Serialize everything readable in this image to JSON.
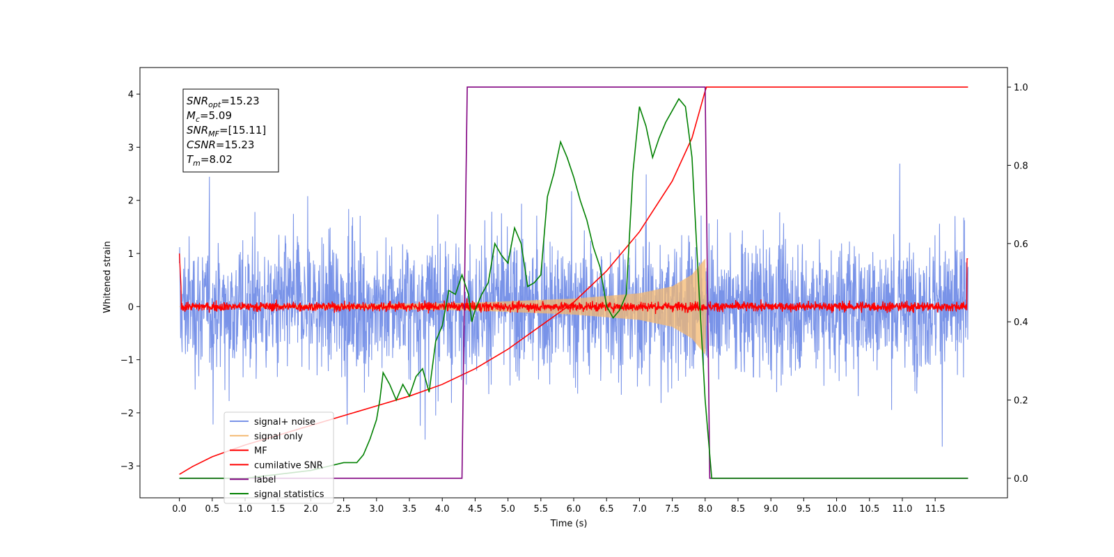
{
  "chart_data": {
    "type": "line",
    "xlabel": "Time (s)",
    "ylabel_left": "Whitened strain",
    "ylabel_right": "",
    "xlim": [
      -0.6,
      12.6
    ],
    "ylim_left": [
      -3.6,
      4.5
    ],
    "ylim_right": [
      -0.05,
      1.05
    ],
    "x_ticks": [
      0.0,
      0.5,
      1.0,
      1.5,
      2.0,
      2.5,
      3.0,
      3.5,
      4.0,
      4.5,
      5.0,
      5.5,
      6.0,
      6.5,
      7.0,
      7.5,
      8.0,
      8.5,
      9.0,
      9.5,
      10.0,
      10.5,
      11.0,
      11.5
    ],
    "x_tick_labels": [
      "0.0",
      "0.5",
      "1.0",
      "1.5",
      "2.0",
      "2.5",
      "3.0",
      "3.5",
      "4.0",
      "4.5",
      "5.0",
      "5.5",
      "6.0",
      "6.5",
      "7.0",
      "7.5",
      "8.0",
      "8.5",
      "9.0",
      "9.5",
      "10.0",
      "10.5",
      "11.0",
      "11.5"
    ],
    "y_left_ticks": [
      -3,
      -2,
      -1,
      0,
      1,
      2,
      3,
      4
    ],
    "y_left_tick_labels": [
      "−3",
      "−2",
      "−1",
      "0",
      "1",
      "2",
      "3",
      "4"
    ],
    "y_right_ticks": [
      0.0,
      0.2,
      0.4,
      0.6,
      0.8,
      1.0
    ],
    "y_right_tick_labels": [
      "0.0",
      "0.2",
      "0.4",
      "0.6",
      "0.8",
      "1.0"
    ],
    "grid": false,
    "legend_placement": "lower-left",
    "series": [
      {
        "name": "signal+ noise",
        "axis": "left",
        "color": "#6a87e6",
        "description_level": "noisy whitened strain, roughly within ±2.7, spanning 0.0–12.0 s"
      },
      {
        "name": "signal only",
        "axis": "left",
        "color": "#f4b870",
        "envelope": {
          "x": [
            0.0,
            4.35,
            5.0,
            6.0,
            7.0,
            7.5,
            7.8,
            8.0,
            8.02
          ],
          "amplitude": [
            0.0,
            0.07,
            0.1,
            0.15,
            0.25,
            0.38,
            0.6,
            0.9,
            0.0
          ]
        }
      },
      {
        "name": "MF",
        "axis": "left",
        "color": "#ff0000",
        "description_level": "matched filter output near 0 with spikes to 1.0 at 0.0 s and 0.9 at 12.0 s"
      },
      {
        "name": "cumilative SNR",
        "axis": "right",
        "color": "#ff0000",
        "x": [
          0.0,
          0.2,
          0.5,
          1.0,
          1.5,
          2.0,
          2.5,
          3.0,
          3.5,
          4.0,
          4.5,
          5.0,
          5.5,
          6.0,
          6.5,
          7.0,
          7.5,
          7.8,
          8.0,
          8.02,
          12.0
        ],
        "y": [
          0.01,
          0.03,
          0.055,
          0.085,
          0.11,
          0.135,
          0.16,
          0.185,
          0.21,
          0.24,
          0.28,
          0.33,
          0.39,
          0.45,
          0.53,
          0.63,
          0.76,
          0.87,
          0.99,
          1.0,
          1.0
        ]
      },
      {
        "name": "label",
        "axis": "right",
        "color": "#800080",
        "x": [
          0.0,
          4.3,
          4.38,
          8.0,
          8.07,
          12.0
        ],
        "y": [
          0.0,
          0.0,
          1.0,
          1.0,
          0.0,
          0.0
        ]
      },
      {
        "name": "signal statistics",
        "axis": "right",
        "color": "#008000",
        "x": [
          0.0,
          1.0,
          1.5,
          2.0,
          2.5,
          2.7,
          2.8,
          2.9,
          3.0,
          3.05,
          3.1,
          3.2,
          3.3,
          3.4,
          3.5,
          3.6,
          3.7,
          3.8,
          3.9,
          4.0,
          4.1,
          4.2,
          4.3,
          4.4,
          4.45,
          4.5,
          4.6,
          4.7,
          4.8,
          4.9,
          5.0,
          5.1,
          5.2,
          5.3,
          5.4,
          5.5,
          5.6,
          5.7,
          5.8,
          5.9,
          6.0,
          6.1,
          6.2,
          6.3,
          6.4,
          6.5,
          6.6,
          6.7,
          6.8,
          6.9,
          7.0,
          7.1,
          7.2,
          7.3,
          7.4,
          7.5,
          7.6,
          7.7,
          7.8,
          7.9,
          8.0,
          8.1,
          8.3,
          8.5,
          9.0,
          10.0,
          11.0,
          12.0
        ],
        "y": [
          0.0,
          0.0,
          0.01,
          0.02,
          0.04,
          0.04,
          0.06,
          0.1,
          0.15,
          0.2,
          0.27,
          0.24,
          0.2,
          0.24,
          0.21,
          0.26,
          0.28,
          0.22,
          0.35,
          0.39,
          0.48,
          0.47,
          0.52,
          0.47,
          0.4,
          0.43,
          0.47,
          0.5,
          0.6,
          0.57,
          0.55,
          0.64,
          0.6,
          0.49,
          0.5,
          0.52,
          0.72,
          0.78,
          0.86,
          0.82,
          0.77,
          0.71,
          0.66,
          0.59,
          0.54,
          0.44,
          0.41,
          0.43,
          0.47,
          0.78,
          0.95,
          0.9,
          0.82,
          0.87,
          0.91,
          0.94,
          0.97,
          0.95,
          0.82,
          0.5,
          0.2,
          0.0,
          0.0,
          0.0,
          0.0,
          0.0,
          0.0,
          0.0
        ]
      }
    ],
    "annotation_box": {
      "lines": [
        {
          "main": "SNR",
          "sub": "opt",
          "value": "=15.23"
        },
        {
          "main": "M",
          "sub": "c",
          "value": "=5.09"
        },
        {
          "main": "SNR",
          "sub": "MF",
          "value": "=[15.11]"
        },
        {
          "main": "CSNR",
          "sub": "",
          "value": "=15.23"
        },
        {
          "main": "T",
          "sub": "m",
          "value": "=8.02"
        }
      ]
    }
  }
}
